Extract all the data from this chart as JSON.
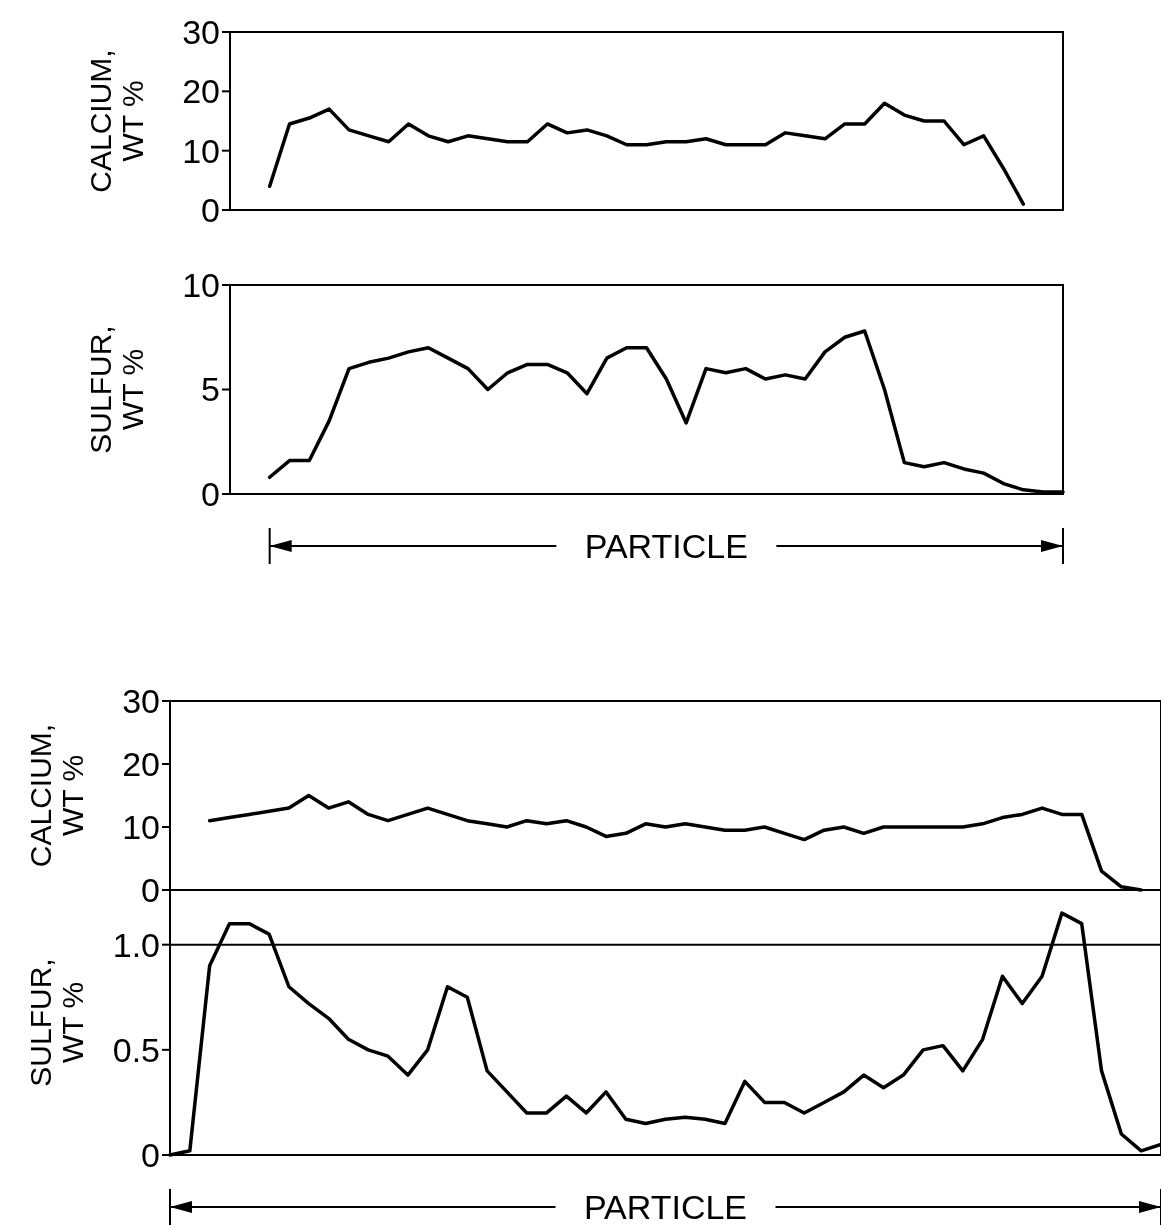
{
  "chart_data": [
    {
      "type": "line",
      "ylabel": "CALCIUM, WT %",
      "categories": [
        null,
        null,
        null,
        null,
        null,
        null,
        null,
        null,
        null,
        null,
        null,
        null,
        null,
        null,
        null,
        null,
        null,
        null,
        null,
        null,
        null,
        null,
        null,
        null,
        null,
        null,
        null,
        null,
        null,
        null,
        null,
        null,
        null,
        null,
        null,
        null,
        null,
        null,
        null,
        null,
        null,
        null,
        null
      ],
      "values": [
        null,
        null,
        4,
        14.5,
        15.5,
        17,
        13.5,
        12.5,
        11.5,
        14.5,
        12.5,
        11.5,
        12.5,
        12,
        11.5,
        11.5,
        14.5,
        13,
        13.5,
        12.5,
        11,
        11,
        11.5,
        11.5,
        12,
        11,
        11,
        11,
        13,
        12.5,
        12,
        14.5,
        14.5,
        18,
        16,
        15,
        15,
        11,
        12.5,
        7,
        1,
        null,
        null
      ],
      "color": "#000000",
      "ylim": [
        0,
        30
      ],
      "yticks": [
        0,
        10,
        20,
        30
      ],
      "tick_labels": "y",
      "grid": false
    },
    {
      "type": "line",
      "ylabel": "SULFUR, WT %",
      "annotations": [
        "PARTICLE"
      ],
      "categories": [
        null,
        null,
        null,
        null,
        null,
        null,
        null,
        null,
        null,
        null,
        null,
        null,
        null,
        null,
        null,
        null,
        null,
        null,
        null,
        null,
        null,
        null,
        null,
        null,
        null,
        null,
        null,
        null,
        null,
        null,
        null,
        null,
        null,
        null,
        null,
        null,
        null,
        null,
        null,
        null,
        null,
        null,
        null
      ],
      "values": [
        null,
        null,
        0.8,
        1.6,
        1.6,
        3.5,
        6,
        6.3,
        6.5,
        6.8,
        7,
        6.5,
        6,
        5,
        5.8,
        6.2,
        6.2,
        5.8,
        4.8,
        6.5,
        7,
        7,
        5.5,
        3.4,
        6,
        5.8,
        6,
        5.5,
        5.7,
        5.5,
        6.8,
        7.5,
        7.8,
        5,
        1.5,
        1.3,
        1.5,
        1.2,
        1,
        0.5,
        0.2,
        0.1,
        0.1
      ],
      "color": "#000000",
      "ylim": [
        0,
        10
      ],
      "yticks": [
        0,
        5,
        10
      ],
      "tick_labels": "y",
      "grid": false
    },
    {
      "type": "line",
      "ylabel": "CALCIUM, WT %",
      "categories": [
        null,
        null,
        null,
        null,
        null,
        null,
        null,
        null,
        null,
        null,
        null,
        null,
        null,
        null,
        null,
        null,
        null,
        null,
        null,
        null,
        null,
        null,
        null,
        null,
        null,
        null,
        null,
        null,
        null,
        null,
        null,
        null,
        null,
        null,
        null,
        null,
        null,
        null,
        null,
        null,
        null,
        null,
        null,
        null,
        null,
        null,
        null,
        null,
        null,
        null,
        null
      ],
      "values": [
        null,
        null,
        11,
        11.5,
        12,
        12.5,
        13,
        15,
        13,
        14,
        12,
        11,
        12,
        13,
        12,
        11,
        10.5,
        10,
        11,
        10.5,
        11,
        10,
        8.5,
        9,
        10.5,
        10,
        10.5,
        10,
        9.5,
        9.5,
        10,
        9,
        8,
        9.5,
        10,
        9,
        10,
        10,
        10,
        10,
        10,
        10.5,
        11.5,
        12,
        13,
        12,
        12,
        3,
        0.5,
        0,
        null
      ],
      "color": "#000000",
      "ylim": [
        0,
        30
      ],
      "yticks": [
        0,
        10,
        20,
        30
      ],
      "tick_labels": "y",
      "grid": false
    },
    {
      "type": "line",
      "ylabel": "SULFUR, WT %",
      "annotations": [
        "PARTICLE"
      ],
      "categories": [
        null,
        null,
        null,
        null,
        null,
        null,
        null,
        null,
        null,
        null,
        null,
        null,
        null,
        null,
        null,
        null,
        null,
        null,
        null,
        null,
        null,
        null,
        null,
        null,
        null,
        null,
        null,
        null,
        null,
        null,
        null,
        null,
        null,
        null,
        null,
        null,
        null,
        null,
        null,
        null,
        null,
        null,
        null,
        null,
        null,
        null,
        null,
        null,
        null,
        null,
        null
      ],
      "values": [
        0,
        0.02,
        0.9,
        1.1,
        1.1,
        1.05,
        0.8,
        0.72,
        0.65,
        0.55,
        0.5,
        0.47,
        0.38,
        0.5,
        0.8,
        0.75,
        0.4,
        0.3,
        0.2,
        0.2,
        0.28,
        0.2,
        0.3,
        0.17,
        0.15,
        0.17,
        0.18,
        0.17,
        0.15,
        0.35,
        0.25,
        0.25,
        0.2,
        0.25,
        0.3,
        0.38,
        0.32,
        0.38,
        0.5,
        0.52,
        0.4,
        0.55,
        0.85,
        0.72,
        0.85,
        1.15,
        1.1,
        0.4,
        0.1,
        0.02,
        0.05
      ],
      "color": "#000000",
      "ylim": [
        0,
        1.26
      ],
      "yticks": [
        0,
        0.5,
        {
          "value": 1,
          "label": "1.0"
        }
      ],
      "tick_labels": "y",
      "grid": false,
      "ref_lines": [
        {
          "axis": "y",
          "value": 1
        }
      ]
    }
  ]
}
